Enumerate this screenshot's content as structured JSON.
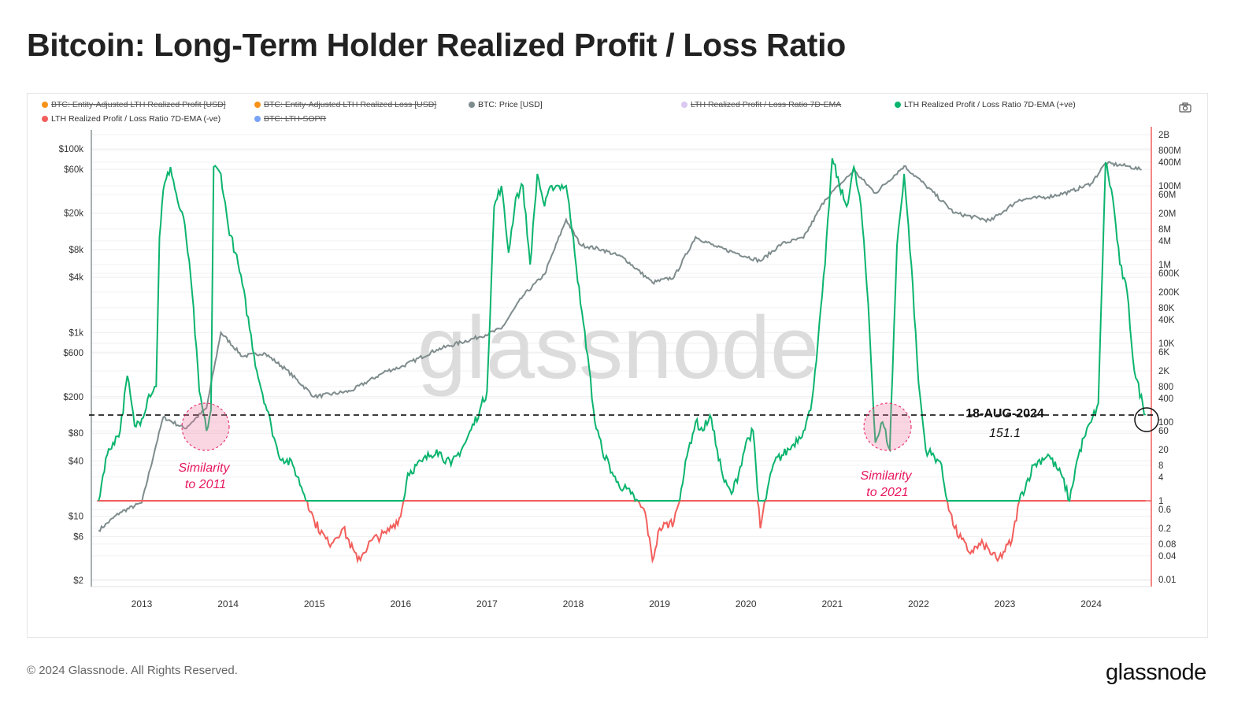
{
  "title": "Bitcoin: Long-Term Holder Realized Profit / Loss Ratio",
  "legend": [
    {
      "label": "BTC: Entity-Adjusted LTH Realized Profit [USD]",
      "color": "#f7931a",
      "disabled": true
    },
    {
      "label": "BTC: Entity-Adjusted LTH Realized Loss [USD]",
      "color": "#f7931a",
      "disabled": true
    },
    {
      "label": "BTC: Price [USD]",
      "color": "#7f8c8d",
      "disabled": false
    },
    {
      "label": "LTH Realized Profit / Loss Ratio 7D-EMA",
      "color": "#d9c8f0",
      "disabled": true
    },
    {
      "label": "LTH Realized Profit / Loss Ratio 7D-EMA (+ve)",
      "color": "#0bb46e",
      "disabled": false
    },
    {
      "label": "LTH Realized Profit / Loss Ratio 7D-EMA (-ve)",
      "color": "#f25f5c",
      "disabled": false
    },
    {
      "label": "BTC: LTH-SOPR",
      "color": "#7aa2f7",
      "disabled": true
    }
  ],
  "toolbar": {
    "screenshot_icon": "camera-icon"
  },
  "watermark": "glassnode",
  "footer": {
    "copyright": "© 2024 Glassnode. All Rights Reserved.",
    "logo": "glassnode"
  },
  "chart_data": {
    "type": "line",
    "title": "Bitcoin: Long-Term Holder Realized Profit / Loss Ratio",
    "x_ticks": [
      "2013",
      "2014",
      "2015",
      "2016",
      "2017",
      "2018",
      "2019",
      "2020",
      "2021",
      "2022",
      "2023",
      "2024"
    ],
    "left_axis": {
      "scale": "log",
      "range": [
        2,
        100000
      ],
      "ticks": [
        {
          "v": 2,
          "l": "$2"
        },
        {
          "v": 6,
          "l": "$6"
        },
        {
          "v": 10,
          "l": "$10"
        },
        {
          "v": 40,
          "l": "$40"
        },
        {
          "v": 80,
          "l": "$80"
        },
        {
          "v": 200,
          "l": "$200"
        },
        {
          "v": 600,
          "l": "$600"
        },
        {
          "v": 1000,
          "l": "$1k"
        },
        {
          "v": 4000,
          "l": "$4k"
        },
        {
          "v": 8000,
          "l": "$8k"
        },
        {
          "v": 20000,
          "l": "$20k"
        },
        {
          "v": 60000,
          "l": "$60k"
        },
        {
          "v": 100000,
          "l": "$100k"
        }
      ]
    },
    "right_axis": {
      "scale": "log",
      "range": [
        0.01,
        2000000000
      ],
      "color": "#f25f5c",
      "ticks": [
        {
          "v": 0.01,
          "l": "0.01"
        },
        {
          "v": 0.04,
          "l": "0.04"
        },
        {
          "v": 0.08,
          "l": "0.08"
        },
        {
          "v": 0.2,
          "l": "0.2"
        },
        {
          "v": 0.6,
          "l": "0.6"
        },
        {
          "v": 1,
          "l": "1"
        },
        {
          "v": 4,
          "l": "4"
        },
        {
          "v": 8,
          "l": "8"
        },
        {
          "v": 20,
          "l": "20"
        },
        {
          "v": 60,
          "l": "60"
        },
        {
          "v": 100,
          "l": "100"
        },
        {
          "v": 400,
          "l": "400"
        },
        {
          "v": 800,
          "l": "800"
        },
        {
          "v": 2000,
          "l": "2K"
        },
        {
          "v": 6000,
          "l": "6K"
        },
        {
          "v": 10000,
          "l": "10K"
        },
        {
          "v": 40000,
          "l": "40K"
        },
        {
          "v": 80000,
          "l": "80K"
        },
        {
          "v": 200000,
          "l": "200K"
        },
        {
          "v": 600000,
          "l": "600K"
        },
        {
          "v": 1000000,
          "l": "1M"
        },
        {
          "v": 4000000,
          "l": "4M"
        },
        {
          "v": 8000000,
          "l": "8M"
        },
        {
          "v": 20000000,
          "l": "20M"
        },
        {
          "v": 60000000,
          "l": "60M"
        },
        {
          "v": 100000000,
          "l": "100M"
        },
        {
          "v": 400000000,
          "l": "400M"
        },
        {
          "v": 800000000,
          "l": "800M"
        },
        {
          "v": 2000000000,
          "l": "2B"
        }
      ]
    },
    "grid": true,
    "legend_position": "top",
    "series": [
      {
        "name": "BTC: Price [USD]",
        "axis": "left",
        "color": "#7f8c8d",
        "points": [
          [
            "2012-07",
            7
          ],
          [
            "2012-10",
            11
          ],
          [
            "2013-01",
            14
          ],
          [
            "2013-03",
            60
          ],
          [
            "2013-04",
            120
          ],
          [
            "2013-07",
            90
          ],
          [
            "2013-10",
            150
          ],
          [
            "2013-12",
            1000
          ],
          [
            "2014-03",
            550
          ],
          [
            "2014-06",
            600
          ],
          [
            "2014-09",
            400
          ],
          [
            "2015-01",
            200
          ],
          [
            "2015-06",
            230
          ],
          [
            "2015-11",
            380
          ],
          [
            "2016-01",
            420
          ],
          [
            "2016-06",
            650
          ],
          [
            "2016-12",
            900
          ],
          [
            "2017-03",
            1100
          ],
          [
            "2017-06",
            2500
          ],
          [
            "2017-09",
            4300
          ],
          [
            "2017-12",
            17000
          ],
          [
            "2018-02",
            9000
          ],
          [
            "2018-05",
            8000
          ],
          [
            "2018-08",
            6500
          ],
          [
            "2018-12",
            3500
          ],
          [
            "2019-03",
            4000
          ],
          [
            "2019-06",
            11000
          ],
          [
            "2019-09",
            8500
          ],
          [
            "2019-12",
            7200
          ],
          [
            "2020-03",
            6000
          ],
          [
            "2020-06",
            9300
          ],
          [
            "2020-09",
            10700
          ],
          [
            "2020-12",
            28000
          ],
          [
            "2021-04",
            58000
          ],
          [
            "2021-07",
            33000
          ],
          [
            "2021-11",
            65000
          ],
          [
            "2022-02",
            40000
          ],
          [
            "2022-06",
            20000
          ],
          [
            "2022-11",
            16500
          ],
          [
            "2023-03",
            28000
          ],
          [
            "2023-07",
            30000
          ],
          [
            "2023-10",
            34000
          ],
          [
            "2024-01",
            42000
          ],
          [
            "2024-03",
            70000
          ],
          [
            "2024-06",
            65000
          ],
          [
            "2024-08",
            59000
          ]
        ]
      },
      {
        "name": "LTH Realized Profit / Loss Ratio 7D-EMA",
        "axis": "right",
        "color_positive": "#0bb46e",
        "color_negative": "#f25f5c",
        "points": [
          [
            "2012-07",
            1
          ],
          [
            "2012-08",
            12
          ],
          [
            "2012-09",
            30
          ],
          [
            "2012-10",
            60
          ],
          [
            "2012-11",
            1500
          ],
          [
            "2012-12",
            80
          ],
          [
            "2013-01",
            120
          ],
          [
            "2013-02",
            500
          ],
          [
            "2013-03",
            800
          ],
          [
            "2013-03-15",
            5000000
          ],
          [
            "2013-04",
            80000000
          ],
          [
            "2013-05",
            300000000
          ],
          [
            "2013-06",
            40000000
          ],
          [
            "2013-07",
            10000000
          ],
          [
            "2013-08",
            200000
          ],
          [
            "2013-09",
            600
          ],
          [
            "2013-10",
            60
          ],
          [
            "2013-10-20",
            200
          ],
          [
            "2013-11",
            300000000
          ],
          [
            "2013-12",
            200000000
          ],
          [
            "2014-01",
            10000000
          ],
          [
            "2014-02",
            2000000
          ],
          [
            "2014-03",
            300000
          ],
          [
            "2014-05",
            2000
          ],
          [
            "2014-07",
            80
          ],
          [
            "2014-08",
            15
          ],
          [
            "2014-10",
            8
          ],
          [
            "2014-12",
            1
          ],
          [
            "2015-01",
            0.3
          ],
          [
            "2015-03",
            0.08
          ],
          [
            "2015-05",
            0.2
          ],
          [
            "2015-07",
            0.03
          ],
          [
            "2015-09",
            0.1
          ],
          [
            "2015-11",
            0.15
          ],
          [
            "2016-01",
            0.4
          ],
          [
            "2016-02",
            5
          ],
          [
            "2016-04",
            10
          ],
          [
            "2016-06",
            20
          ],
          [
            "2016-08",
            8
          ],
          [
            "2016-10",
            30
          ],
          [
            "2016-12",
            200
          ],
          [
            "2017-01",
            600
          ],
          [
            "2017-02",
            30000000
          ],
          [
            "2017-03",
            100000000
          ],
          [
            "2017-04",
            2000000
          ],
          [
            "2017-05",
            50000000
          ],
          [
            "2017-06",
            100000000
          ],
          [
            "2017-07",
            1000000
          ],
          [
            "2017-08",
            200000000
          ],
          [
            "2017-09",
            30000000
          ],
          [
            "2017-10",
            100000000
          ],
          [
            "2017-11",
            100000000
          ],
          [
            "2017-12",
            100000000
          ],
          [
            "2018-01",
            5000000
          ],
          [
            "2018-02",
            100000
          ],
          [
            "2018-03",
            5000
          ],
          [
            "2018-04",
            100
          ],
          [
            "2018-05",
            20
          ],
          [
            "2018-07",
            3
          ],
          [
            "2018-09",
            1.5
          ],
          [
            "2018-11",
            0.5
          ],
          [
            "2018-12",
            0.03
          ],
          [
            "2019-01",
            0.2
          ],
          [
            "2019-03",
            0.3
          ],
          [
            "2019-04",
            2
          ],
          [
            "2019-05",
            20
          ],
          [
            "2019-06",
            100
          ],
          [
            "2019-07",
            60
          ],
          [
            "2019-08",
            150
          ],
          [
            "2019-09",
            20
          ],
          [
            "2019-10",
            3
          ],
          [
            "2019-11",
            1.5
          ],
          [
            "2019-12",
            5
          ],
          [
            "2020-01",
            30
          ],
          [
            "2020-02",
            60
          ],
          [
            "2020-03",
            0.2
          ],
          [
            "2020-04",
            2
          ],
          [
            "2020-05",
            10
          ],
          [
            "2020-07",
            20
          ],
          [
            "2020-09",
            60
          ],
          [
            "2020-10",
            200
          ],
          [
            "2020-11",
            10000
          ],
          [
            "2020-12",
            1000000
          ],
          [
            "2021-01",
            500000000
          ],
          [
            "2021-02",
            100000000
          ],
          [
            "2021-03",
            30000000
          ],
          [
            "2021-04",
            300000000
          ],
          [
            "2021-05",
            30000000
          ],
          [
            "2021-06",
            100000
          ],
          [
            "2021-07",
            30
          ],
          [
            "2021-08",
            100
          ],
          [
            "2021-09",
            20
          ],
          [
            "2021-10",
            3000000
          ],
          [
            "2021-11",
            200000000
          ],
          [
            "2021-12",
            1000000
          ],
          [
            "2022-01",
            1000
          ],
          [
            "2022-02",
            20
          ],
          [
            "2022-04",
            10
          ],
          [
            "2022-05",
            1
          ],
          [
            "2022-06",
            0.2
          ],
          [
            "2022-08",
            0.05
          ],
          [
            "2022-10",
            0.08
          ],
          [
            "2022-12",
            0.03
          ],
          [
            "2023-02",
            0.1
          ],
          [
            "2023-03",
            1
          ],
          [
            "2023-05",
            8
          ],
          [
            "2023-07",
            15
          ],
          [
            "2023-09",
            4
          ],
          [
            "2023-10",
            1
          ],
          [
            "2023-11",
            10
          ],
          [
            "2023-12",
            40
          ],
          [
            "2024-01",
            100
          ],
          [
            "2024-02",
            300
          ],
          [
            "2024-03",
            400000000
          ],
          [
            "2024-04",
            50000000
          ],
          [
            "2024-05",
            1000000
          ],
          [
            "2024-06",
            200000
          ],
          [
            "2024-07",
            2000
          ],
          [
            "2024-08-18",
            151.1
          ]
        ]
      }
    ],
    "reference_line": {
      "value": 151.1,
      "axis": "right",
      "style": "dashed"
    },
    "annotations": [
      {
        "text_line1": "Similarity",
        "text_line2": "to 2011",
        "date": "2013-09",
        "color": "#e8175d"
      },
      {
        "text_line1": "Similarity",
        "text_line2": "to 2021",
        "date": "2021-08",
        "color": "#e8175d"
      },
      {
        "date_label": "18-AUG-2024",
        "value_label": "151.1",
        "date": "2024-08-18"
      }
    ]
  }
}
